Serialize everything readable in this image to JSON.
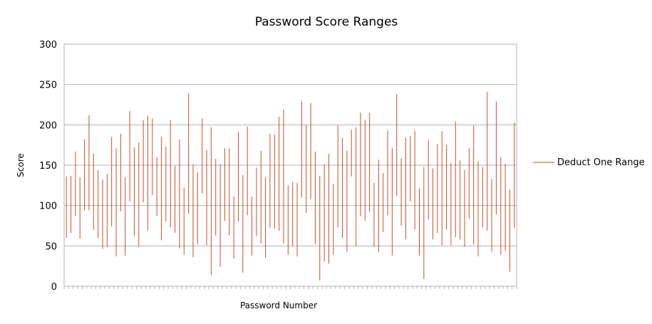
{
  "chart_data": {
    "type": "range",
    "title": "Password Score Ranges",
    "xlabel": "Password Number",
    "ylabel": "Score",
    "ylim": [
      0,
      300
    ],
    "yticks": [
      0,
      50,
      100,
      150,
      200,
      250,
      300
    ],
    "grid": true,
    "legend": "right",
    "series": [
      {
        "name": "Deduct One Range",
        "color": "#c8502a",
        "ranges": [
          [
            60,
            136
          ],
          [
            66,
            137
          ],
          [
            87,
            167
          ],
          [
            59,
            135
          ],
          [
            94,
            182
          ],
          [
            94,
            212
          ],
          [
            70,
            164
          ],
          [
            60,
            144
          ],
          [
            46,
            132
          ],
          [
            49,
            139
          ],
          [
            74,
            185
          ],
          [
            37,
            171
          ],
          [
            93,
            189
          ],
          [
            38,
            135
          ],
          [
            105,
            217
          ],
          [
            62,
            172
          ],
          [
            49,
            178
          ],
          [
            104,
            206
          ],
          [
            69,
            211
          ],
          [
            113,
            208
          ],
          [
            87,
            160
          ],
          [
            57,
            185
          ],
          [
            80,
            173
          ],
          [
            73,
            206
          ],
          [
            66,
            149
          ],
          [
            47,
            182
          ],
          [
            39,
            122
          ],
          [
            90,
            239
          ],
          [
            36,
            151
          ],
          [
            52,
            141
          ],
          [
            115,
            208
          ],
          [
            51,
            169
          ],
          [
            14,
            197
          ],
          [
            63,
            158
          ],
          [
            24,
            151
          ],
          [
            81,
            171
          ],
          [
            63,
            171
          ],
          [
            34,
            111
          ],
          [
            80,
            191
          ],
          [
            17,
            138
          ],
          [
            88,
            198
          ],
          [
            38,
            111
          ],
          [
            62,
            147
          ],
          [
            53,
            168
          ],
          [
            35,
            135
          ],
          [
            73,
            189
          ],
          [
            71,
            188
          ],
          [
            69,
            210
          ],
          [
            53,
            219
          ],
          [
            39,
            125
          ],
          [
            50,
            129
          ],
          [
            37,
            128
          ],
          [
            110,
            229
          ],
          [
            91,
            200
          ],
          [
            108,
            227
          ],
          [
            52,
            167
          ],
          [
            7,
            137
          ],
          [
            31,
            151
          ],
          [
            28,
            164
          ],
          [
            39,
            127
          ],
          [
            73,
            200
          ],
          [
            60,
            184
          ],
          [
            43,
            168
          ],
          [
            136,
            194
          ],
          [
            50,
            197
          ],
          [
            87,
            215
          ],
          [
            81,
            206
          ],
          [
            92,
            215
          ],
          [
            49,
            128
          ],
          [
            42,
            157
          ],
          [
            67,
            140
          ],
          [
            88,
            193
          ],
          [
            38,
            171
          ],
          [
            112,
            238
          ],
          [
            75,
            159
          ],
          [
            58,
            184
          ],
          [
            105,
            186
          ],
          [
            70,
            193
          ],
          [
            38,
            121
          ],
          [
            9,
            148
          ],
          [
            83,
            181
          ],
          [
            58,
            146
          ],
          [
            66,
            176
          ],
          [
            51,
            192
          ],
          [
            70,
            175
          ],
          [
            51,
            153
          ],
          [
            61,
            204
          ],
          [
            58,
            156
          ],
          [
            49,
            144
          ],
          [
            84,
            171
          ],
          [
            52,
            199
          ],
          [
            37,
            155
          ],
          [
            73,
            148
          ],
          [
            69,
            241
          ],
          [
            43,
            133
          ],
          [
            89,
            229
          ],
          [
            39,
            160
          ],
          [
            44,
            152
          ],
          [
            18,
            120
          ],
          [
            72,
            203
          ]
        ]
      }
    ]
  }
}
